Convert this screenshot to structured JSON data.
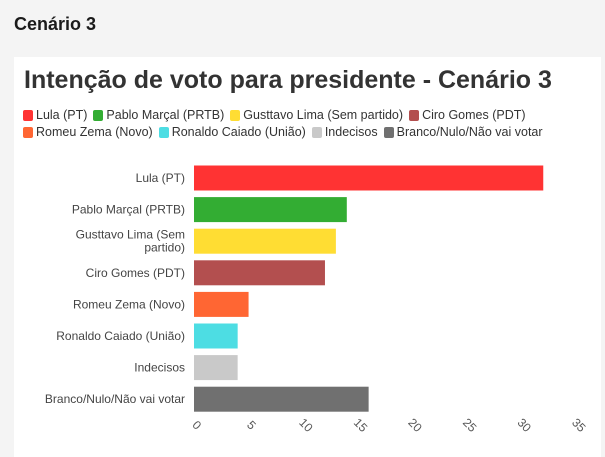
{
  "page": {
    "heading": "Cenário 3"
  },
  "chart_data": {
    "type": "bar",
    "orientation": "horizontal",
    "title": "Intenção de voto para presidente - Cenário 3",
    "categories": [
      "Lula (PT)",
      "Pablo Marçal (PRTB)",
      "Gusttavo Lima (Sem partido)",
      "Ciro Gomes (PDT)",
      "Romeu Zema (Novo)",
      "Ronaldo Caiado (União)",
      "Indecisos",
      "Branco/Nulo/Não vai votar"
    ],
    "category_lines": [
      [
        "Lula (PT)"
      ],
      [
        "Pablo Marçal (PRTB)"
      ],
      [
        "Gusttavo Lima (Sem",
        "partido)"
      ],
      [
        "Ciro Gomes (PDT)"
      ],
      [
        "Romeu Zema (Novo)"
      ],
      [
        "Ronaldo Caiado (União)"
      ],
      [
        "Indecisos"
      ],
      [
        "Branco/Nulo/Não vai votar"
      ]
    ],
    "values": [
      32,
      14,
      13,
      12,
      5,
      4,
      4,
      16
    ],
    "colors": [
      "#ff3333",
      "#33ad33",
      "#ffdd33",
      "#b34f4f",
      "#ff6633",
      "#4ddde3",
      "#c9c9c9",
      "#707070"
    ],
    "xlim": [
      0,
      35
    ],
    "xticks": [
      "0",
      "5",
      "10",
      "15",
      "20",
      "25",
      "30",
      "35"
    ],
    "grid": false,
    "legend_position": "top",
    "xlabel": "",
    "ylabel": ""
  }
}
